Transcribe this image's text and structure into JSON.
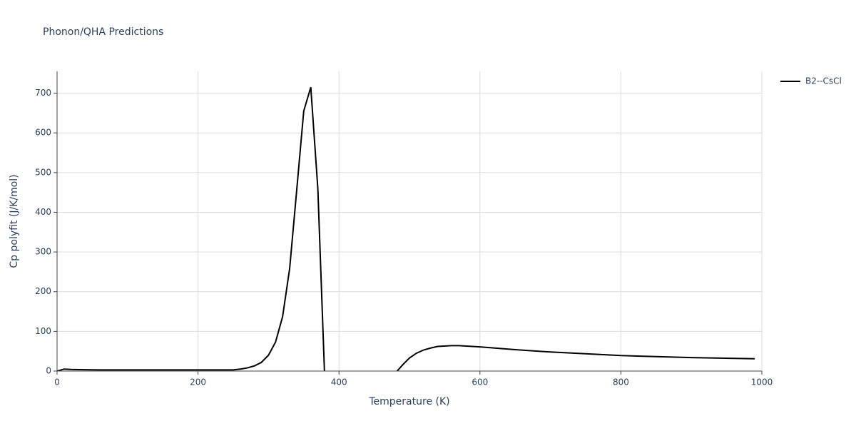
{
  "chart_data": {
    "type": "line",
    "title": "Phonon/QHA Predictions",
    "x_label": "Temperature (K)",
    "y_label": "Cp polyfit (J/K/mol)",
    "x": [
      0,
      10,
      20,
      30,
      60,
      100,
      150,
      200,
      240,
      250,
      260,
      270,
      280,
      290,
      300,
      310,
      320,
      330,
      340,
      350,
      360,
      370,
      380,
      430,
      480,
      490,
      500,
      510,
      520,
      530,
      540,
      560,
      570,
      600,
      650,
      700,
      800,
      900,
      990
    ],
    "series": [
      {
        "name": "B2--CsCl",
        "color": "#000000",
        "values": [
          0,
          5,
          4,
          3.5,
          3,
          3,
          3,
          3,
          3,
          3,
          5,
          8,
          13,
          22,
          40,
          73,
          137,
          258,
          455,
          655,
          715,
          460,
          -30,
          null,
          -5,
          15,
          33,
          45,
          53,
          58,
          62,
          64,
          64,
          61,
          54,
          48,
          39,
          34,
          31
        ]
      }
    ],
    "xlim": [
      0,
      1000
    ],
    "xticks": [
      0,
      200,
      400,
      600,
      800,
      1000
    ],
    "ylim": [
      0,
      755
    ],
    "yticks": [
      0,
      100,
      200,
      300,
      400,
      500,
      600,
      700
    ],
    "grid": true,
    "legend": "top-right"
  }
}
